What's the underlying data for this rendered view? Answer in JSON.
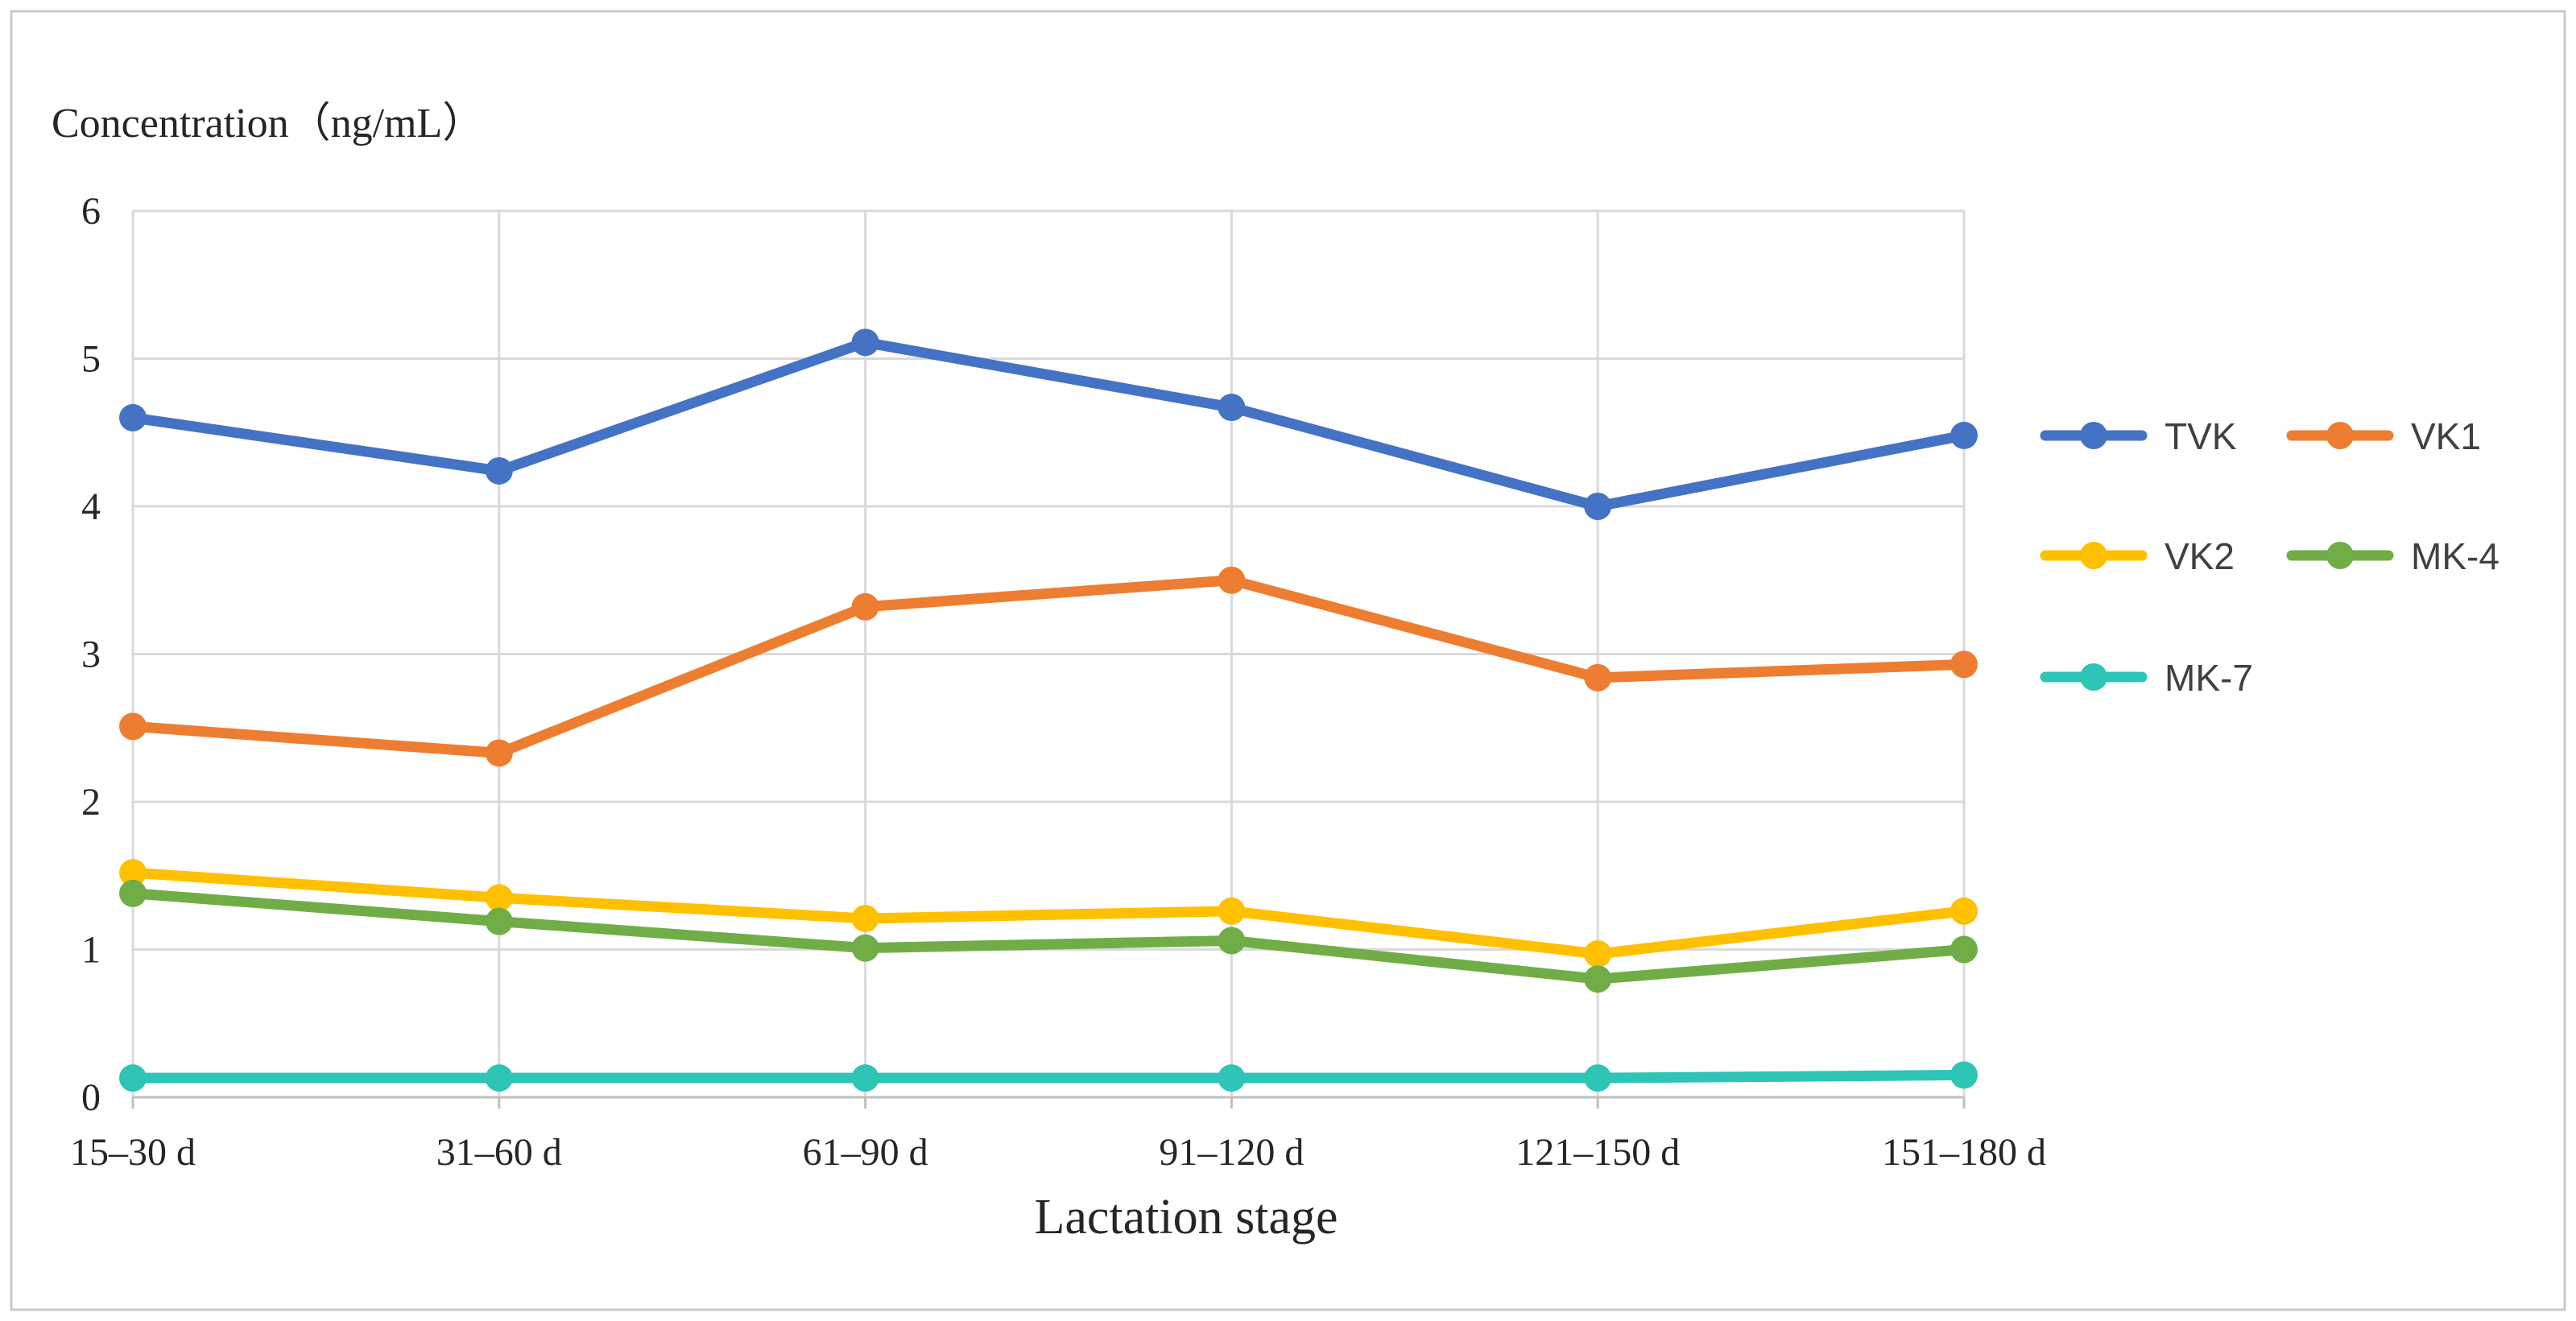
{
  "chart_data": {
    "type": "line",
    "title": "",
    "ylabel": "Concentration（ng/mL）",
    "xlabel": "Lactation stage",
    "categories": [
      "15–30 d",
      "31–60 d",
      "61–90 d",
      "91–120 d",
      "121–150 d",
      "151–180 d"
    ],
    "ylim": [
      0,
      6
    ],
    "yticks": [
      "0",
      "1",
      "2",
      "3",
      "4",
      "5",
      "6"
    ],
    "grid": true,
    "legend_position": "right",
    "series": [
      {
        "name": "TVK",
        "color": "#4472C4",
        "values": [
          4.6,
          4.24,
          5.11,
          4.67,
          4.0,
          4.48
        ]
      },
      {
        "name": "VK1",
        "color": "#ED7D31",
        "values": [
          2.51,
          2.33,
          3.32,
          3.5,
          2.84,
          2.93
        ]
      },
      {
        "name": "VK2",
        "color": "#FFC000",
        "values": [
          1.52,
          1.35,
          1.21,
          1.26,
          0.97,
          1.26
        ]
      },
      {
        "name": "MK-4",
        "color": "#70AD47",
        "values": [
          1.38,
          1.19,
          1.01,
          1.06,
          0.8,
          1.0
        ]
      },
      {
        "name": "MK-7",
        "color": "#2EC4B6",
        "values": [
          0.13,
          0.13,
          0.13,
          0.13,
          0.13,
          0.15
        ]
      }
    ]
  }
}
